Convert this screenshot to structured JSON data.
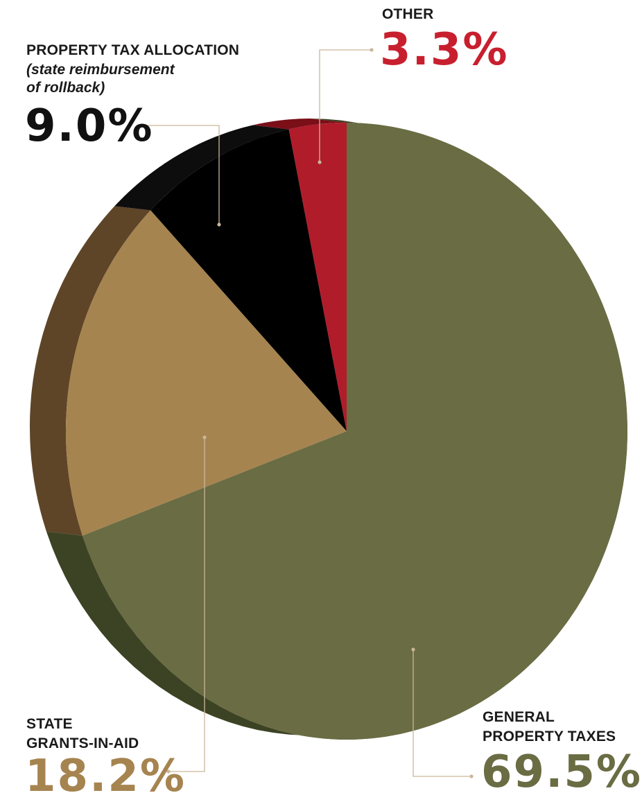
{
  "chart_data": {
    "type": "pie",
    "title": "",
    "slices": [
      {
        "label_line1": "GENERAL",
        "label_line2": "PROPERTY TAXES",
        "value": 69.5,
        "display": "69.5%",
        "color": "#6a6c43",
        "side_color": "#3c4324"
      },
      {
        "label_line1": "STATE",
        "label_line2": "GRANTS-IN-AID",
        "value": 18.2,
        "display": "18.2%",
        "color": "#a68450",
        "side_color": "#5e4527"
      },
      {
        "label_line1": "PROPERTY TAX ALLOCATION",
        "label_line2": "(state reimbursement",
        "label_line3": "of rollback)",
        "value": 9.0,
        "display": "9.0%",
        "color": "#000000",
        "side_color": "#0d0d0d"
      },
      {
        "label_line1": "OTHER",
        "value": 3.3,
        "display": "3.3%",
        "color": "#b01c2a",
        "side_color": "#7a0f18"
      }
    ],
    "value_colors": {
      "general": "#6a6c43",
      "grants": "#a68450",
      "allocation": "#111111",
      "other": "#c81f2f"
    },
    "leader_color": "#c9b79a",
    "legend": "none"
  }
}
